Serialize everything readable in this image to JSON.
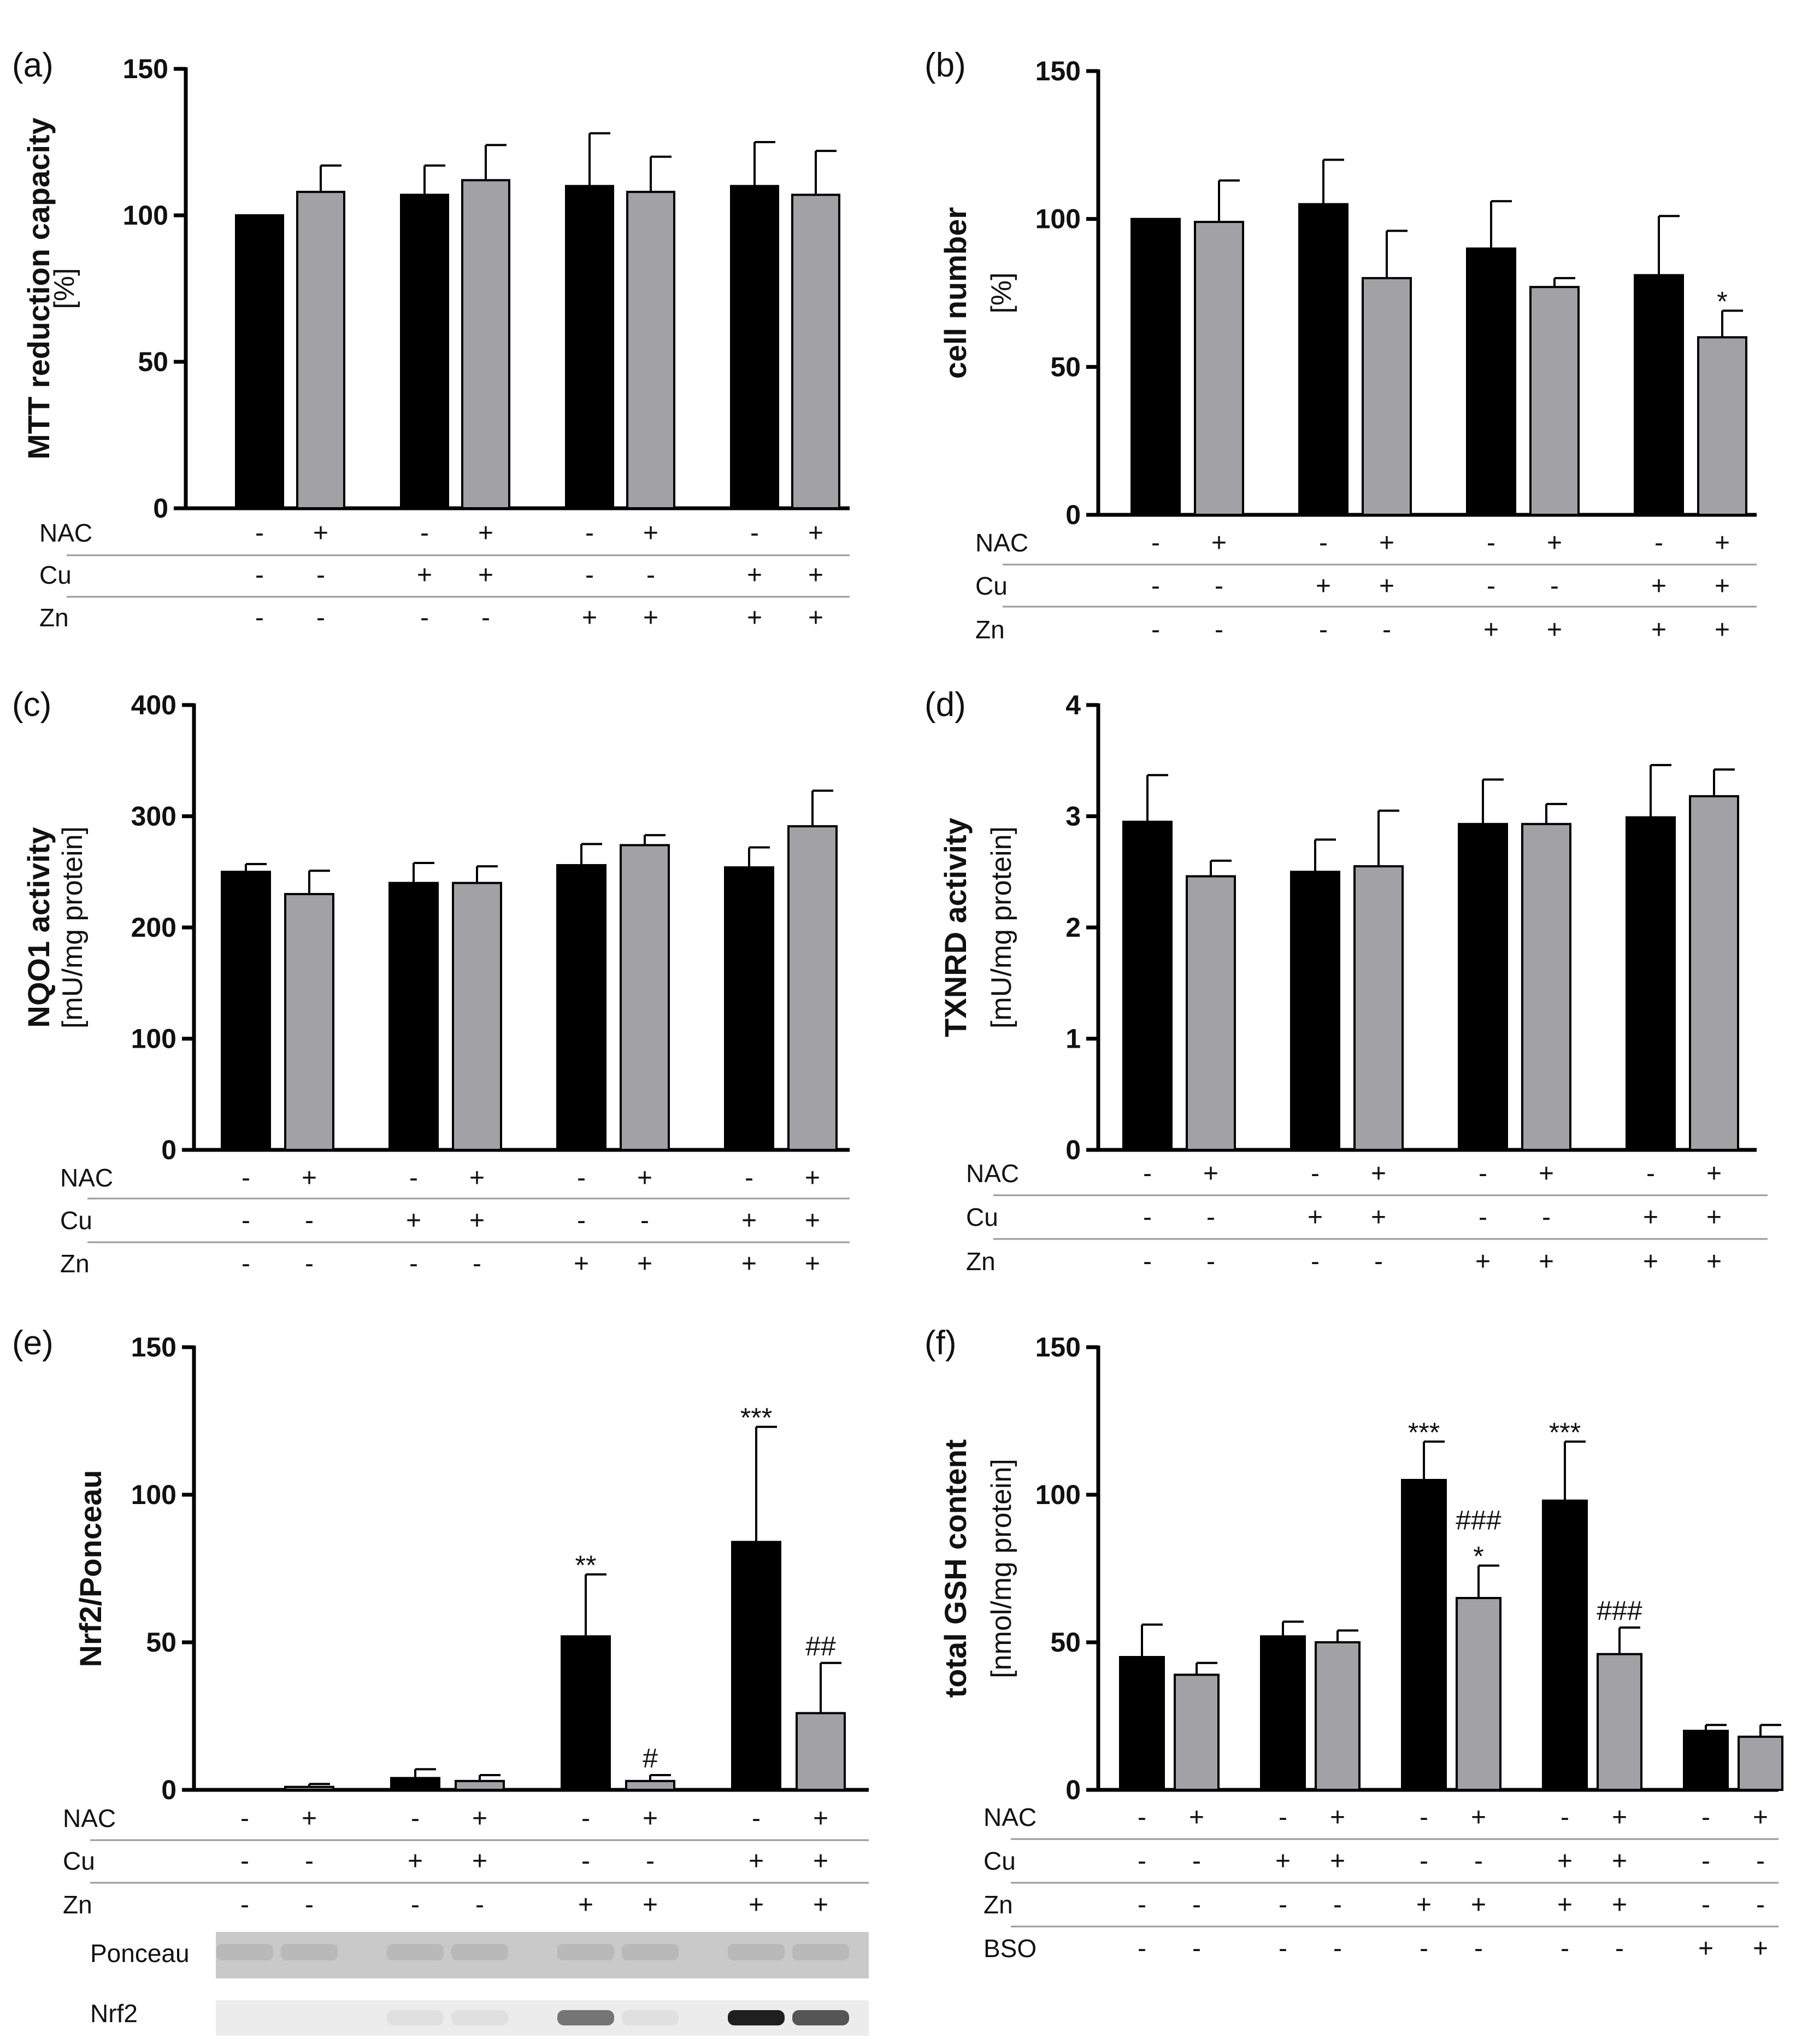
{
  "colors": {
    "black_bar": "#000000",
    "gray_bar": "#a2a2a4",
    "line": "#000000",
    "separator": "#9a9a9a",
    "ponceau_band": "#c9c9c9",
    "blot_bg": "#ececec"
  },
  "treatment_labels": {
    "nac": "NAC",
    "cu": "Cu",
    "zn": "Zn",
    "bso": "BSO"
  },
  "blot": {
    "ponceau_label": "Ponceau",
    "nrf2_label": "Nrf2",
    "nrf2_band_intensity": [
      0,
      0,
      0.05,
      0.05,
      0.55,
      0.05,
      0.95,
      0.7
    ]
  },
  "chart_data": [
    {
      "id": "a",
      "panel_label": "(a)",
      "type": "bar",
      "ylabel_bold": "MTT reduction capacity",
      "ylabel_unit": "[%]",
      "ylim": [
        0,
        150
      ],
      "yticks": [
        0,
        50,
        100,
        150
      ],
      "ytick_labels": [
        "0",
        "50",
        "100",
        "150"
      ],
      "values": [
        100,
        108,
        107,
        112,
        110,
        108,
        110,
        107
      ],
      "errors": [
        0,
        9,
        10,
        12,
        18,
        12,
        15,
        15
      ],
      "annotations": [
        "",
        "",
        "",
        "",
        "",
        "",
        "",
        ""
      ],
      "rows": [
        {
          "name": "NAC",
          "signs": [
            "-",
            "+",
            "-",
            "+",
            "-",
            "+",
            "-",
            "+"
          ]
        },
        {
          "name": "Cu",
          "signs": [
            "-",
            "-",
            "+",
            "+",
            "-",
            "-",
            "+",
            "+"
          ]
        },
        {
          "name": "Zn",
          "signs": [
            "-",
            "-",
            "-",
            "-",
            "+",
            "+",
            "+",
            "+"
          ]
        }
      ]
    },
    {
      "id": "b",
      "panel_label": "(b)",
      "type": "bar",
      "ylabel_bold": "cell number",
      "ylabel_unit": "[%]",
      "ylim": [
        0,
        150
      ],
      "yticks": [
        0,
        50,
        100,
        150
      ],
      "ytick_labels": [
        "0",
        "50",
        "100",
        "150"
      ],
      "values": [
        100,
        99,
        105,
        80,
        90,
        77,
        81,
        60
      ],
      "errors": [
        0,
        14,
        15,
        16,
        16,
        3,
        20,
        9
      ],
      "annotations": [
        "",
        "",
        "",
        "",
        "",
        "",
        "",
        "*"
      ],
      "rows": [
        {
          "name": "NAC",
          "signs": [
            "-",
            "+",
            "-",
            "+",
            "-",
            "+",
            "-",
            "+"
          ]
        },
        {
          "name": "Cu",
          "signs": [
            "-",
            "-",
            "+",
            "+",
            "-",
            "-",
            "+",
            "+"
          ]
        },
        {
          "name": "Zn",
          "signs": [
            "-",
            "-",
            "-",
            "-",
            "+",
            "+",
            "+",
            "+"
          ]
        }
      ]
    },
    {
      "id": "c",
      "panel_label": "(c)",
      "type": "bar",
      "ylabel_bold": "NQO1 activity",
      "ylabel_unit": "[mU/mg protein]",
      "ylim": [
        0,
        400
      ],
      "yticks": [
        0,
        100,
        200,
        300,
        400
      ],
      "ytick_labels": [
        "0",
        "100",
        "200",
        "300",
        "400"
      ],
      "values": [
        250,
        230,
        240,
        240,
        256,
        274,
        254,
        291
      ],
      "errors": [
        7,
        21,
        18,
        15,
        19,
        9,
        18,
        32
      ],
      "annotations": [
        "",
        "",
        "",
        "",
        "",
        "",
        "",
        ""
      ],
      "rows": [
        {
          "name": "NAC",
          "signs": [
            "-",
            "+",
            "-",
            "+",
            "-",
            "+",
            "-",
            "+"
          ]
        },
        {
          "name": "Cu",
          "signs": [
            "-",
            "-",
            "+",
            "+",
            "-",
            "-",
            "+",
            "+"
          ]
        },
        {
          "name": "Zn",
          "signs": [
            "-",
            "-",
            "-",
            "-",
            "+",
            "+",
            "+",
            "+"
          ]
        }
      ]
    },
    {
      "id": "d",
      "panel_label": "(d)",
      "type": "bar",
      "ylabel_bold": "TXNRD activity",
      "ylabel_unit": "[mU/mg protein]",
      "ylim": [
        0,
        4
      ],
      "yticks": [
        0,
        1,
        2,
        3,
        4
      ],
      "ytick_labels": [
        "0",
        "1",
        "2",
        "3",
        "4"
      ],
      "values": [
        2.95,
        2.46,
        2.5,
        2.55,
        2.93,
        2.93,
        2.99,
        3.18
      ],
      "errors": [
        0.42,
        0.14,
        0.29,
        0.5,
        0.4,
        0.18,
        0.47,
        0.24
      ],
      "annotations": [
        "",
        "",
        "",
        "",
        "",
        "",
        "",
        ""
      ],
      "rows": [
        {
          "name": "NAC",
          "signs": [
            "-",
            "+",
            "-",
            "+",
            "-",
            "+",
            "-",
            "+"
          ]
        },
        {
          "name": "Cu",
          "signs": [
            "-",
            "-",
            "+",
            "+",
            "-",
            "-",
            "+",
            "+"
          ]
        },
        {
          "name": "Zn",
          "signs": [
            "-",
            "-",
            "-",
            "-",
            "+",
            "+",
            "+",
            "+"
          ]
        }
      ]
    },
    {
      "id": "e",
      "panel_label": "(e)",
      "type": "bar",
      "ylabel_bold": "Nrf2/Ponceau",
      "ylabel_unit": "",
      "ylim": [
        0,
        150
      ],
      "yticks": [
        0,
        50,
        100,
        150
      ],
      "ytick_labels": [
        "0",
        "50",
        "100",
        "150"
      ],
      "values": [
        0,
        1,
        4,
        3,
        52,
        3,
        84,
        26
      ],
      "errors": [
        0,
        1,
        3,
        2,
        21,
        2,
        39,
        17
      ],
      "annotations": [
        "",
        "",
        "",
        "",
        "**",
        "#",
        "***",
        "##"
      ],
      "rows": [
        {
          "name": "NAC",
          "signs": [
            "-",
            "+",
            "-",
            "+",
            "-",
            "+",
            "-",
            "+"
          ]
        },
        {
          "name": "Cu",
          "signs": [
            "-",
            "-",
            "+",
            "+",
            "-",
            "-",
            "+",
            "+"
          ]
        },
        {
          "name": "Zn",
          "signs": [
            "-",
            "-",
            "-",
            "-",
            "+",
            "+",
            "+",
            "+"
          ]
        }
      ]
    },
    {
      "id": "f",
      "panel_label": "(f)",
      "type": "bar",
      "ylabel_bold": "total GSH content",
      "ylabel_unit": "[nmol/mg protein]",
      "ylim": [
        0,
        150
      ],
      "yticks": [
        0,
        50,
        100,
        150
      ],
      "ytick_labels": [
        "0",
        "50",
        "100",
        "150"
      ],
      "values": [
        45,
        39,
        52,
        50,
        105,
        65,
        98,
        46,
        20,
        18
      ],
      "errors": [
        11,
        4,
        5,
        4,
        13,
        11,
        20,
        9,
        2,
        4
      ],
      "annotations": [
        "",
        "",
        "",
        "",
        "***",
        "###\n*",
        "***",
        "###",
        "",
        ""
      ],
      "rows": [
        {
          "name": "NAC",
          "signs": [
            "-",
            "+",
            "-",
            "+",
            "-",
            "+",
            "-",
            "+",
            "-",
            "+"
          ]
        },
        {
          "name": "Cu",
          "signs": [
            "-",
            "-",
            "+",
            "+",
            "-",
            "-",
            "+",
            "+",
            "-",
            "-"
          ]
        },
        {
          "name": "Zn",
          "signs": [
            "-",
            "-",
            "-",
            "-",
            "+",
            "+",
            "+",
            "+",
            "-",
            "-"
          ]
        },
        {
          "name": "BSO",
          "signs": [
            "-",
            "-",
            "-",
            "-",
            "-",
            "-",
            "-",
            "-",
            "+",
            "+"
          ]
        }
      ]
    }
  ]
}
